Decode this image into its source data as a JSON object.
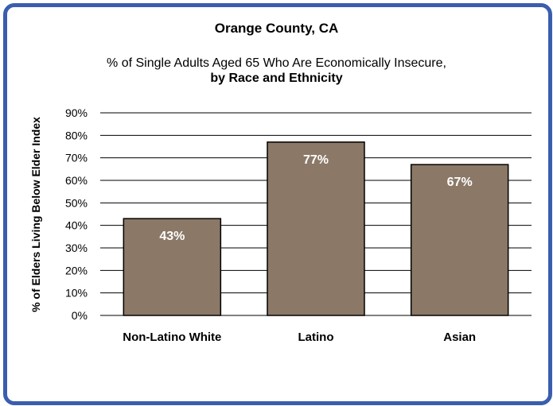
{
  "chart_data": {
    "type": "bar",
    "title": "Orange County, CA",
    "subtitle_line1": "% of Single Adults Aged 65 Who Are Economically Insecure,",
    "subtitle_line2": "by Race and Ethnicity",
    "ylabel": "% of  Elders Living Below  Elder Index",
    "xlabel": "",
    "categories": [
      "Non-Latino White",
      "Latino",
      "Asian"
    ],
    "values": [
      43,
      77,
      67
    ],
    "data_labels": [
      "43%",
      "77%",
      "67%"
    ],
    "ylim": [
      0,
      90
    ],
    "yticks": [
      "0%",
      "10%",
      "20%",
      "30%",
      "40%",
      "50%",
      "60%",
      "70%",
      "80%",
      "90%"
    ],
    "grid": true,
    "bar_color": "#8b7866",
    "frame_color": "#3a5dae"
  }
}
